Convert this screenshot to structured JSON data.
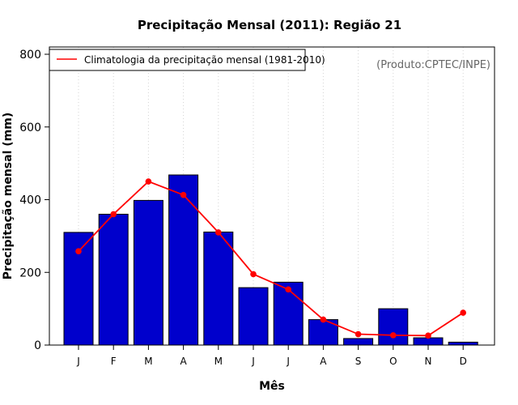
{
  "chart_data": {
    "type": "bar",
    "title": "Precipitação Mensal (2011): Região 21",
    "xlabel": "Mês",
    "ylabel": "Precipitação mensal (mm)",
    "ylim": [
      0,
      800
    ],
    "yticks": [
      0,
      200,
      400,
      600,
      800
    ],
    "categories": [
      "J",
      "F",
      "M",
      "A",
      "M",
      "J",
      "J",
      "A",
      "S",
      "O",
      "N",
      "D"
    ],
    "series": [
      {
        "name": "Precipitação mensal 2011",
        "kind": "bar",
        "color": "#0000cc",
        "values": [
          310,
          360,
          398,
          468,
          311,
          158,
          173,
          70,
          18,
          100,
          20,
          8
        ]
      },
      {
        "name": "Climatologia da precipitação mensal (1981-2010)",
        "kind": "line",
        "color": "#ff0000",
        "values": [
          258,
          360,
          450,
          413,
          310,
          195,
          153,
          70,
          30,
          27,
          26,
          89
        ]
      }
    ],
    "legend": {
      "label": "Climatologia da precipitação mensal (1981-2010)",
      "position": "top-left"
    },
    "grid": "vertical-dotted",
    "annotation": "(Produto:CPTEC/INPE)"
  }
}
